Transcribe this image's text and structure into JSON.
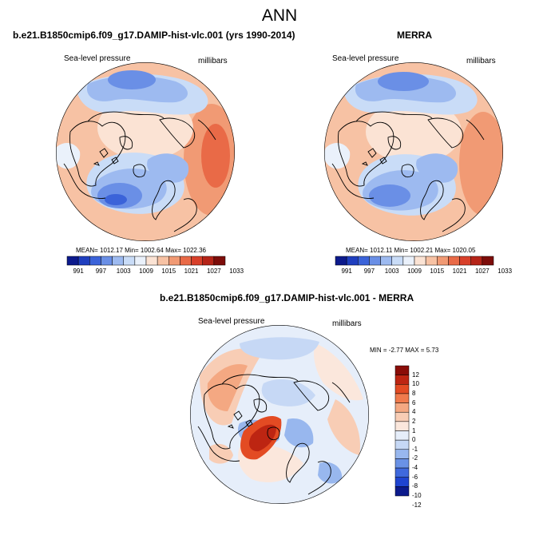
{
  "page": {
    "title": "ANN"
  },
  "panels": [
    {
      "title": "b.e21.B1850cmip6.f09_g17.DAMIP-hist-vlc.001 (yrs 1990-2014)",
      "variable": "Sea-level pressure",
      "units": "millibars",
      "stats": "MEAN= 1012.17  Min= 1002.64  Max= 1022.36",
      "colorbar_labels": [
        "991",
        "997",
        "1003",
        "1009",
        "1015",
        "1021",
        "1027",
        "1033"
      ]
    },
    {
      "title": "MERRA",
      "variable": "Sea-level pressure",
      "units": "millibars",
      "stats": "MEAN= 1012.11  Min= 1002.21  Max= 1020.05",
      "colorbar_labels": [
        "991",
        "997",
        "1003",
        "1009",
        "1015",
        "1021",
        "1027",
        "1033"
      ]
    },
    {
      "title": "b.e21.B1850cmip6.f09_g17.DAMIP-hist-vlc.001 - MERRA",
      "variable": "Sea-level pressure",
      "units": "millibars",
      "stats": "MIN =  -2.77 MAX =   5.73",
      "colorbar_labels": [
        "12",
        "10",
        "8",
        "6",
        "4",
        "2",
        "1",
        "0",
        "-1",
        "-2",
        "-4",
        "-6",
        "-8",
        "-10",
        "-12"
      ]
    }
  ],
  "colors": {
    "abs_scale": [
      "#0c1a8c",
      "#1f3fbf",
      "#3b63d9",
      "#6a8fe6",
      "#9dbaf0",
      "#c9dcf7",
      "#eaf1fb",
      "#fbe3d4",
      "#f7c2a4",
      "#f19a74",
      "#e96a47",
      "#d8402a",
      "#b52418",
      "#7d0d0a"
    ],
    "diff_scale": [
      "#8a0d08",
      "#bd2512",
      "#e34b23",
      "#f07a4c",
      "#f4a882",
      "#f8cdb5",
      "#fbe7dc",
      "#e6eefa",
      "#c6d8f5",
      "#98b7ee",
      "#6a92e6",
      "#3f69dd",
      "#1f44d0",
      "#0c1a8c"
    ]
  }
}
